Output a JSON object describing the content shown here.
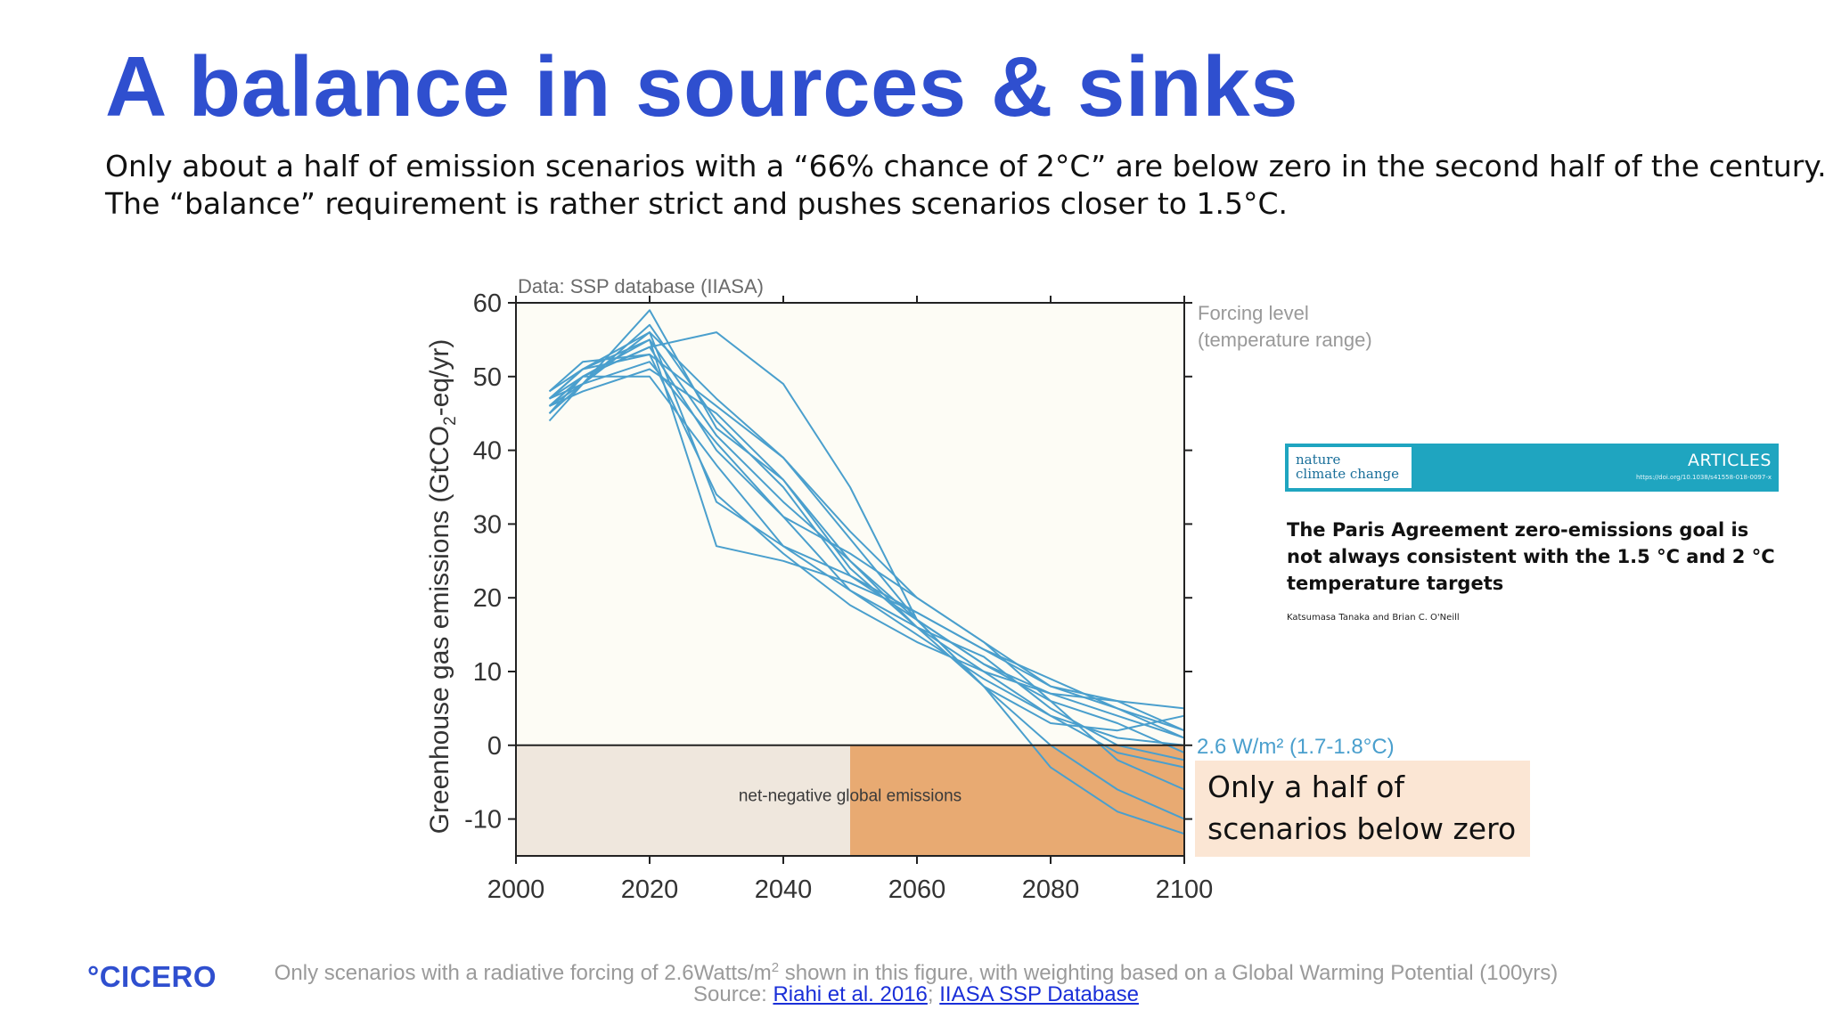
{
  "slide": {
    "title": "A balance in sources & sinks",
    "intro_line1": "Only about a half of emission scenarios with a “66% chance of 2°C” are below zero in the second half of the century.",
    "intro_line2": "The “balance” requirement is rather strict and pushes scenarios closer to 1.5°C."
  },
  "article": {
    "journal_line1": "nature",
    "journal_line2": "climate change",
    "section": "ARTICLES",
    "doi": "https://doi.org/10.1038/s41558-018-0097-x",
    "title_line1": "The Paris Agreement zero-emissions goal is",
    "title_line2": "not always consistent with the 1.5 °C and 2 °C",
    "title_line3": "temperature targets",
    "authors": "Katsumasa Tanaka and Brian C. O'Neill"
  },
  "callout": {
    "line1": "Only a half of",
    "line2": "scenarios below zero"
  },
  "footer": {
    "logo": "°CICERO",
    "note_before": "Only scenarios with a radiative forcing of 2.6Watts/m",
    "note_sup": "2",
    "note_after": " shown in this figure, with weighting based on a Global Warming Potential (100yrs)",
    "source_prefix": "Source: ",
    "link1": "Riahi et al. 2016",
    "separator": ";",
    "link2": "IIASA SSP Database"
  },
  "chart_data": {
    "type": "line",
    "title": "Data: SSP database (IIASA)",
    "xlabel": "",
    "ylabel_main": "Greenhouse gas emissions (GtCO",
    "ylabel_sub": "2",
    "ylabel_end": "-eq/yr)",
    "xlim": [
      2000,
      2100
    ],
    "ylim": [
      -15,
      60
    ],
    "xticks": [
      2000,
      2020,
      2040,
      2060,
      2080,
      2100
    ],
    "yticks": [
      -10,
      0,
      10,
      20,
      30,
      40,
      50,
      60
    ],
    "x": [
      2005,
      2010,
      2020,
      2030,
      2040,
      2050,
      2060,
      2070,
      2080,
      2090,
      2100
    ],
    "right_header_line1": "Forcing level",
    "right_header_line2": "(temperature range)",
    "forcing_label": "2.6 W/m² (1.7-1.8°C)",
    "region_label": "net-negative global emissions",
    "negative_region": {
      "x": [
        2000,
        2100
      ],
      "y": [
        -15,
        0
      ]
    },
    "highlight_region": {
      "x": [
        2050,
        2100
      ],
      "y": [
        -15,
        0
      ]
    },
    "colors": {
      "line": "#4a9fcd",
      "plot_bg": "#fdfcf5",
      "negative_bg": "#efe7dd",
      "highlight_bg": "#e8aa72",
      "axis": "#222222",
      "label_gray": "#999999",
      "forcing": "#4a9fcd"
    },
    "series": [
      {
        "values": [
          47,
          49,
          59,
          43,
          36,
          25,
          17,
          11,
          7,
          4,
          1
        ]
      },
      {
        "values": [
          46,
          50,
          54,
          56,
          49,
          35,
          17,
          8,
          0,
          -6,
          -10
        ]
      },
      {
        "values": [
          48,
          51,
          55,
          27,
          25,
          22,
          18,
          13,
          8,
          6,
          2
        ]
      },
      {
        "values": [
          44,
          49,
          57,
          44,
          35,
          23,
          17,
          11,
          6,
          3,
          -1
        ]
      },
      {
        "values": [
          47,
          51,
          56,
          33,
          27,
          23,
          18,
          13,
          9,
          5,
          1
        ]
      },
      {
        "values": [
          45,
          50,
          54,
          40,
          31,
          21,
          15,
          9,
          4,
          1,
          0
        ]
      },
      {
        "values": [
          48,
          52,
          53,
          46,
          39,
          29,
          20,
          14,
          8,
          5,
          2
        ]
      },
      {
        "values": [
          46,
          49,
          52,
          41,
          31,
          26,
          20,
          14,
          6,
          -2,
          -6
        ]
      },
      {
        "values": [
          47,
          50,
          50,
          38,
          27,
          21,
          16,
          10,
          4,
          -1,
          -3
        ]
      },
      {
        "values": [
          46,
          48,
          51,
          45,
          36,
          24,
          16,
          8,
          3,
          2,
          4
        ]
      },
      {
        "values": [
          45,
          49,
          56,
          47,
          39,
          28,
          17,
          8,
          -3,
          -9,
          -12
        ]
      },
      {
        "values": [
          47,
          51,
          53,
          34,
          26,
          19,
          14,
          10,
          7,
          6,
          5
        ]
      },
      {
        "values": [
          46,
          50,
          55,
          42,
          33,
          25,
          16,
          12,
          5,
          0,
          -2
        ]
      }
    ]
  }
}
